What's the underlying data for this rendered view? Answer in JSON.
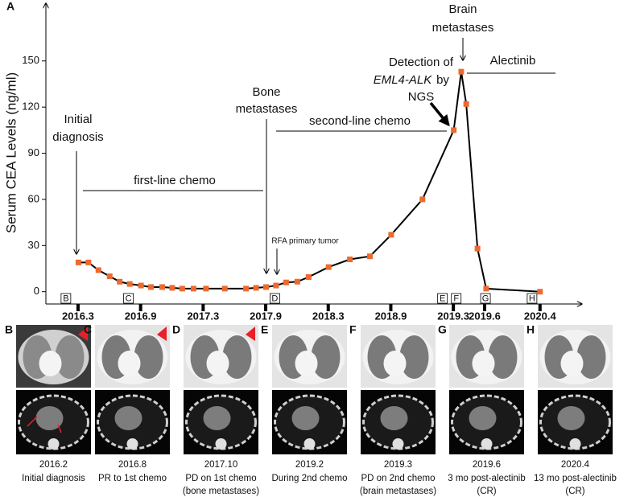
{
  "chart_data": {
    "type": "line",
    "panel_label": "A",
    "y_label": "Serum CEA Levels (ng/ml)",
    "x": [
      2016.17,
      2016.25,
      2016.33,
      2016.42,
      2016.5,
      2016.58,
      2016.67,
      2016.75,
      2016.84,
      2016.92,
      2017.0,
      2017.09,
      2017.19,
      2017.34,
      2017.51,
      2017.59,
      2017.67,
      2017.75,
      2017.83,
      2017.92,
      2018.01,
      2018.17,
      2018.34,
      2018.5,
      2018.67,
      2018.92,
      2019.17,
      2019.23,
      2019.27,
      2019.36,
      2019.44,
      2020.25
    ],
    "values": [
      19,
      19,
      14,
      10,
      6.5,
      5,
      4,
      3,
      3,
      2.5,
      2,
      2,
      2,
      2,
      2,
      2.5,
      3,
      4,
      6,
      6.5,
      9.5,
      16,
      21,
      23,
      37,
      60,
      105,
      143,
      122,
      28,
      2,
      0
    ],
    "color": "#ed6a2e",
    "line_color": "#000000",
    "xlim": [
      2015.91,
      2020.87
    ],
    "xticks": [
      {
        "value": 2016.167,
        "label": "2016.3"
      },
      {
        "value": 2016.667,
        "label": "2016.9"
      },
      {
        "value": 2017.167,
        "label": "2017.3"
      },
      {
        "value": 2017.667,
        "label": "2017.9"
      },
      {
        "value": 2018.167,
        "label": "2018.3"
      },
      {
        "value": 2018.667,
        "label": "2018.9"
      },
      {
        "value": 2019.167,
        "label": "2019.3"
      },
      {
        "value": 2019.417,
        "label": "2019.6"
      },
      {
        "value": 2020.25,
        "label": "2020.4"
      }
    ],
    "ylim": [
      -8,
      187
    ],
    "yticks": [
      0,
      30,
      60,
      90,
      120,
      150
    ],
    "image_markers": [
      {
        "label": "B",
        "x": 2016.07
      },
      {
        "label": "C",
        "x": 2016.57
      },
      {
        "label": "D",
        "x": 2017.74
      },
      {
        "label": "E",
        "x": 2019.08
      },
      {
        "label": "F",
        "x": 2019.19
      },
      {
        "label": "G",
        "x": 2019.43
      },
      {
        "label": "H",
        "x": 2020.13
      }
    ],
    "annotations": {
      "initial": [
        "Initial",
        "diagnosis"
      ],
      "first_line": "first-line chemo",
      "bone": [
        "Bone",
        "metastases"
      ],
      "rfa": "RFA primary tumor",
      "second_line": "second-line chemo",
      "detection": {
        "line1": "Detection of",
        "gene": "EML4-ALK",
        "by": "by",
        "line3": "NGS"
      },
      "brain": [
        "Brain",
        "metastases"
      ],
      "alectinib": "Alectinib"
    }
  },
  "image_panels": [
    {
      "letter": "B",
      "date": "2016.2",
      "caption": [
        "Initial diagnosis"
      ]
    },
    {
      "letter": "C",
      "date": "2016.8",
      "caption": [
        "PR to 1st chemo"
      ]
    },
    {
      "letter": "D",
      "date": "2017.10",
      "caption": [
        "PD on 1st chemo",
        "(bone metastases)"
      ]
    },
    {
      "letter": "E",
      "date": "2019.2",
      "caption": [
        "During 2nd chemo"
      ]
    },
    {
      "letter": "F",
      "date": "2019.3",
      "caption": [
        "PD on 2nd chemo",
        "(brain metastases)"
      ]
    },
    {
      "letter": "G",
      "date": "2019.6",
      "caption": [
        "3 mo post-alectinib",
        "(CR)"
      ]
    },
    {
      "letter": "H",
      "date": "2020.4",
      "caption": [
        "13 mo post-alectinib",
        "(CR)"
      ]
    }
  ]
}
